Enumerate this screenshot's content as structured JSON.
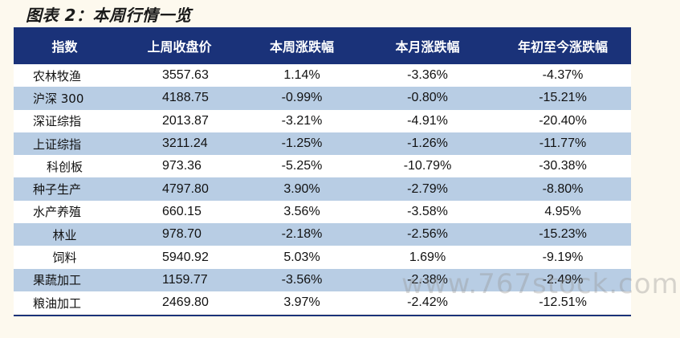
{
  "title": "图表 2：本周行情一览",
  "headers": [
    "指数",
    "上周收盘价",
    "本周涨跌幅",
    "本月涨跌幅",
    "年初至今涨跌幅"
  ],
  "rows": [
    {
      "name": "农林牧渔",
      "close": "3557.63",
      "week": "1.14%",
      "month": "-3.36%",
      "ytd": "-4.37%"
    },
    {
      "name": "沪深 300",
      "close": "4188.75",
      "week": "-0.99%",
      "month": "-0.80%",
      "ytd": "-15.21%"
    },
    {
      "name": "深证综指",
      "close": "2013.87",
      "week": "-3.21%",
      "month": "-4.91%",
      "ytd": "-20.40%"
    },
    {
      "name": "上证综指",
      "close": "3211.24",
      "week": "-1.25%",
      "month": "-1.26%",
      "ytd": "-11.77%"
    },
    {
      "name": "科创板",
      "close": "973.36",
      "week": "-5.25%",
      "month": "-10.79%",
      "ytd": "-30.38%"
    },
    {
      "name": "种子生产",
      "close": "4797.80",
      "week": "3.90%",
      "month": "-2.79%",
      "ytd": "-8.80%"
    },
    {
      "name": "水产养殖",
      "close": "660.15",
      "week": "3.56%",
      "month": "-3.58%",
      "ytd": "4.95%"
    },
    {
      "name": "林业",
      "close": "978.70",
      "week": "-2.18%",
      "month": "-2.56%",
      "ytd": "-15.23%"
    },
    {
      "name": "饲料",
      "close": "5940.92",
      "week": "5.03%",
      "month": "1.69%",
      "ytd": "-9.19%"
    },
    {
      "name": "果蔬加工",
      "close": "1159.77",
      "week": "-3.56%",
      "month": "-2.38%",
      "ytd": "-2.49%"
    },
    {
      "name": "粮油加工",
      "close": "2469.80",
      "week": "3.97%",
      "month": "-2.42%",
      "ytd": "-12.51%"
    }
  ],
  "watermark": "www.767stock.com",
  "colors": {
    "header_bg": "#1a3279",
    "stripe": "#b8cde4",
    "page_bg": "#fdf9ee"
  }
}
